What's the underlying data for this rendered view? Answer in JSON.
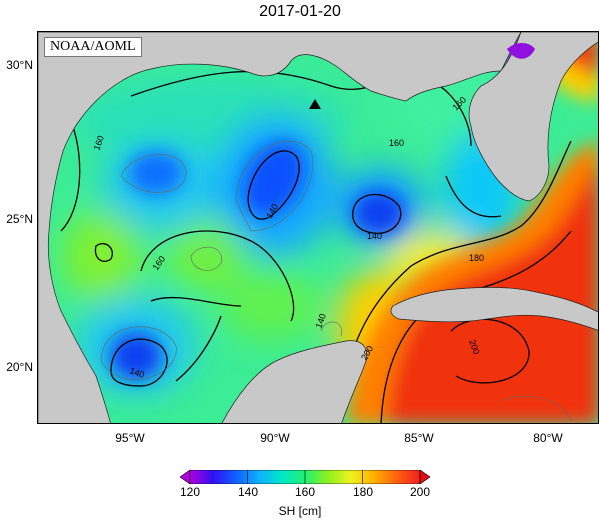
{
  "title": "2017-01-20",
  "source_label": "NOAA/AOML",
  "lat_labels": [
    "30°N",
    "25°N",
    "20°N"
  ],
  "lon_labels": [
    "95°W",
    "90°W",
    "85°W",
    "80°W"
  ],
  "colorbar": {
    "ticks": [
      "120",
      "140",
      "160",
      "180",
      "200"
    ],
    "label": "SH [cm]",
    "colors": [
      "#b000e0",
      "#3010f0",
      "#1060ff",
      "#10b0ff",
      "#00e8c8",
      "#20f070",
      "#90f020",
      "#f0f020",
      "#ffb000",
      "#ff6010",
      "#f02020"
    ]
  },
  "contour_labels": [
    "160",
    "140",
    "140",
    "160",
    "160",
    "140",
    "140",
    "180",
    "200",
    "200",
    "160"
  ],
  "colors": {
    "land": "#c8c8c8",
    "ocean_base": "#40f090",
    "contour": "#000000"
  },
  "marker": "triangle-marker"
}
